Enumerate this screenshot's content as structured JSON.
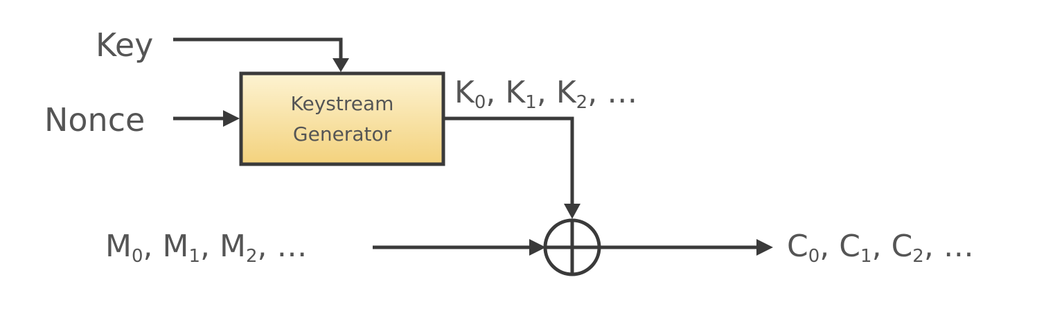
{
  "inputs": {
    "key": "Key",
    "nonce": "Nonce"
  },
  "generator": {
    "line1": "Keystream",
    "line2": "Generator"
  },
  "keystream": {
    "terms": [
      {
        "base": "K",
        "sub": "0",
        "sep": ","
      },
      {
        "base": "K",
        "sub": "1",
        "sep": ","
      },
      {
        "base": "K",
        "sub": "2",
        "sep": ","
      }
    ],
    "ellipsis": "…"
  },
  "message": {
    "terms": [
      {
        "base": "M",
        "sub": "0",
        "sep": ","
      },
      {
        "base": "M",
        "sub": "1",
        "sep": ","
      },
      {
        "base": "M",
        "sub": "2",
        "sep": ","
      }
    ],
    "ellipsis": "…"
  },
  "ciphertext": {
    "terms": [
      {
        "base": "C",
        "sub": "0",
        "sep": ","
      },
      {
        "base": "C",
        "sub": "1",
        "sep": ","
      },
      {
        "base": "C",
        "sub": "2",
        "sep": ","
      }
    ],
    "ellipsis": "…"
  },
  "colors": {
    "stroke": "#3a3a3a",
    "text": "#555555",
    "box_fill_top": "#fdf3d2",
    "box_fill_bottom": "#f3d27d"
  }
}
